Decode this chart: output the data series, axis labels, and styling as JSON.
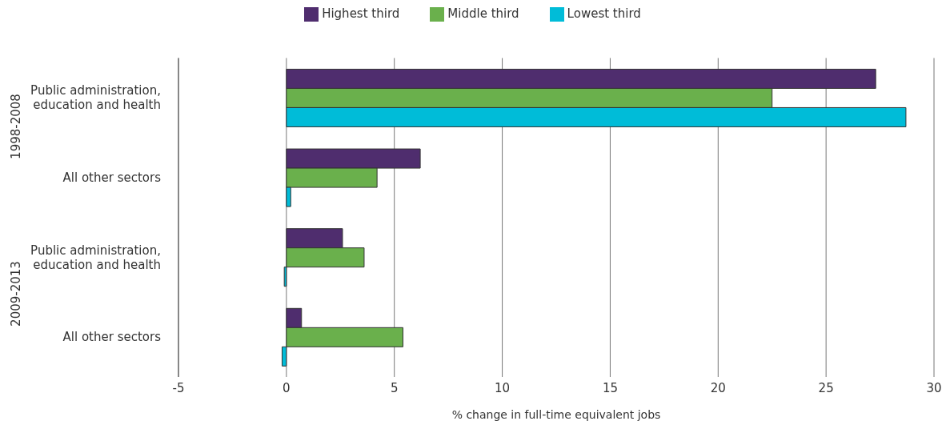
{
  "chart_data": {
    "type": "bar",
    "orientation": "horizontal",
    "xlabel": "% change in full-time equivalent jobs",
    "categories": [
      "Public administration, education and health",
      "All other sectors",
      "Public administration, education and health",
      "All other sectors"
    ],
    "series": [
      {
        "name": "Highest third",
        "color": "#4f2d6e",
        "values": [
          27.3,
          6.2,
          2.6,
          0.7
        ]
      },
      {
        "name": "Middle third",
        "color": "#6ab04c",
        "values": [
          22.5,
          4.2,
          3.6,
          5.4
        ]
      },
      {
        "name": "Lowest third",
        "color": "#00bcd8",
        "values": [
          28.7,
          0.2,
          -0.1,
          -0.2
        ]
      }
    ],
    "annotations": [
      "1998-2008",
      "2009-2013"
    ],
    "xlim": [
      -5,
      30
    ],
    "xticks": [
      -5,
      0,
      5,
      10,
      15,
      20,
      25,
      30
    ],
    "grid": "x",
    "legend": "top"
  }
}
